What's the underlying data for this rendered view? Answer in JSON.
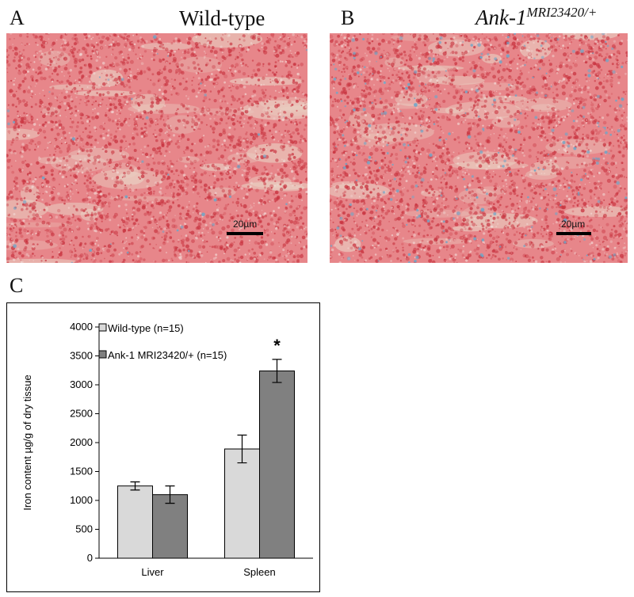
{
  "panels": {
    "A": {
      "letter": "A",
      "title": "Wild-type",
      "scale_label": "20µm"
    },
    "B": {
      "letter": "B",
      "title_main": "Ank-1",
      "title_sup": "MRI23420/+",
      "scale_label": "20µm"
    },
    "C": {
      "letter": "C"
    }
  },
  "colors": {
    "tissue_base": "#e7868a",
    "tissue_dark": "#c8323e",
    "stroma": "#ead6c8",
    "iron_stain": "#6fa6c8",
    "wildtype_bar": "#d9d9d9",
    "mutant_bar": "#808080"
  },
  "chart_data": {
    "type": "bar",
    "categories": [
      "Liver",
      "Spleen"
    ],
    "series": [
      {
        "name": "Wild-type (n=15)",
        "values": [
          1250,
          1890
        ],
        "errors": [
          70,
          240
        ],
        "color": "#d9d9d9"
      },
      {
        "name": "Ank-1 MRI23420/+ (n=15)",
        "values": [
          1100,
          3240
        ],
        "errors": [
          150,
          200
        ],
        "color": "#808080"
      }
    ],
    "ylabel": "Iron content µg/g of dry tissue",
    "ylim": [
      0,
      4000
    ],
    "yticks": [
      0,
      500,
      1000,
      1500,
      2000,
      2500,
      3000,
      3500,
      4000
    ],
    "significance": [
      {
        "category": "Spleen",
        "series": 1,
        "label": "*"
      }
    ],
    "legend_position": "top-left",
    "grid": false
  }
}
